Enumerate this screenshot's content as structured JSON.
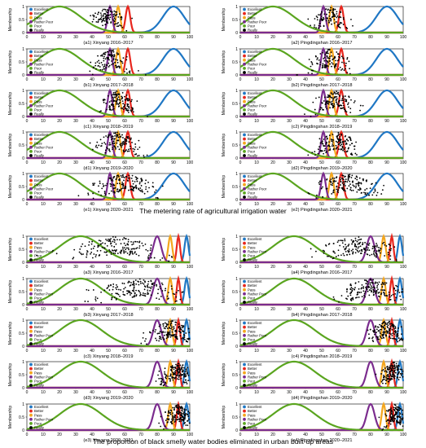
{
  "legend_items": [
    {
      "label": "Excellent",
      "color": "#1f77c4"
    },
    {
      "label": "Better",
      "color": "#e8261d"
    },
    {
      "label": "Pass",
      "color": "#f4a61c"
    },
    {
      "label": "Rather Poor",
      "color": "#7b2c8e"
    },
    {
      "label": "Poor",
      "color": "#5aa51f"
    },
    {
      "label": "Really",
      "color": "#000000"
    }
  ],
  "y_axis_label": "Membership",
  "x_ticks": [
    "0",
    "10",
    "20",
    "30",
    "40",
    "50",
    "60",
    "70",
    "80",
    "90",
    "100"
  ],
  "y_ticks": [
    "0",
    "0.5",
    "1"
  ],
  "sections": [
    {
      "title": "The metering rate of agricultural irrigation water",
      "bands": {
        "poor": {
          "mu": 20,
          "sigma": 13
        },
        "rather_poor": {
          "mu": 51,
          "sigma": 1.4
        },
        "pass": {
          "mu": 56,
          "sigma": 1.3
        },
        "better": {
          "mu": 62,
          "sigma": 1.4
        },
        "excellent": {
          "mu": 90,
          "sigma": 6.5
        }
      }
    },
    {
      "title": "The proportion of black smelly water bodies eliminated in urban built-up areas",
      "bands": {
        "poor": {
          "mu": 33,
          "sigma": 13
        },
        "rather_poor": {
          "mu": 80,
          "sigma": 2.4
        },
        "pass": {
          "mu": 88,
          "sigma": 1.2
        },
        "better": {
          "mu": 93,
          "sigma": 1.0
        },
        "excellent": {
          "mu": 98,
          "sigma": 1.2
        }
      }
    }
  ],
  "panels": [
    {
      "section": 0,
      "caption": "(a1) Xinyang 2016–2017",
      "cloud": {
        "center": 50,
        "spread": 5.5,
        "n": 110
      }
    },
    {
      "section": 0,
      "caption": "(a2) Pingdingshan 2016–2017",
      "cloud": {
        "center": 55,
        "spread": 5.5,
        "n": 110
      }
    },
    {
      "section": 0,
      "caption": "(b1) Xinyang 2017–2018",
      "cloud": {
        "center": 52,
        "spread": 5.5,
        "n": 110
      }
    },
    {
      "section": 0,
      "caption": "(b2) Pingdingshan 2017–2018",
      "cloud": {
        "center": 55,
        "spread": 6,
        "n": 110
      }
    },
    {
      "section": 0,
      "caption": "(c1) Xinyang 2018–2019",
      "cloud": {
        "center": 56,
        "spread": 5.5,
        "n": 120
      }
    },
    {
      "section": 0,
      "caption": "(c2) Pingdingshan 2018–2019",
      "cloud": {
        "center": 58,
        "spread": 6.5,
        "n": 130
      }
    },
    {
      "section": 0,
      "caption": "(d1) Xinyang 2019–2020",
      "cloud": {
        "center": 55,
        "spread": 7,
        "n": 130
      }
    },
    {
      "section": 0,
      "caption": "(d2) Pingdingshan 2019–2020",
      "cloud": {
        "center": 59,
        "spread": 7,
        "n": 140
      }
    },
    {
      "section": 0,
      "caption": "(e1) Xinyang 2020–2021",
      "cloud": {
        "center": 60,
        "spread": 10,
        "n": 160
      }
    },
    {
      "section": 0,
      "caption": "(e2) Pingdingshan 2020–2021",
      "cloud": {
        "center": 66,
        "spread": 10,
        "n": 160
      }
    },
    {
      "section": 1,
      "caption": "(a3) Xinyang 2016–2017",
      "cloud": {
        "center": 55,
        "spread": 13,
        "n": 170
      }
    },
    {
      "section": 1,
      "caption": "(a4) Pingdingshan 2016–2017",
      "cloud": {
        "center": 72,
        "spread": 12,
        "n": 170
      }
    },
    {
      "section": 1,
      "caption": "(b3) Xinyang 2017–2018",
      "cloud": {
        "center": 70,
        "spread": 13,
        "n": 170
      }
    },
    {
      "section": 1,
      "caption": "(b4) Pingdingshan 2017–2018",
      "cloud": {
        "center": 80,
        "spread": 10,
        "n": 170
      }
    },
    {
      "section": 1,
      "caption": "(c3) Xinyang 2018–2019",
      "cloud": {
        "center": 88,
        "spread": 7,
        "n": 160
      }
    },
    {
      "section": 1,
      "caption": "(c4) Pingdingshan 2018–2019",
      "cloud": {
        "center": 90,
        "spread": 6,
        "n": 150
      }
    },
    {
      "section": 1,
      "caption": "(d3) Xinyang 2019–2020",
      "cloud": {
        "center": 92,
        "spread": 5,
        "n": 150
      }
    },
    {
      "section": 1,
      "caption": "(d4) Pingdingshan 2019–2020",
      "cloud": {
        "center": 94,
        "spread": 4,
        "n": 140
      }
    },
    {
      "section": 1,
      "caption": "(e3) Xinyang 2020–2021",
      "cloud": {
        "center": 93,
        "spread": 4.5,
        "n": 150
      }
    },
    {
      "section": 1,
      "caption": "(e4) Pingdingshan 2020–2021",
      "cloud": {
        "center": 95,
        "spread": 3.5,
        "n": 140
      }
    }
  ],
  "chart_data": {
    "type": "line",
    "description_units": "x = indicator value (0–100), y = membership degree (0–1)",
    "xlim": [
      0,
      100
    ],
    "ylim": [
      0,
      1
    ],
    "ylabel": "Membership",
    "series_names": [
      "Excellent",
      "Better",
      "Pass",
      "Rather Poor",
      "Poor",
      "Really"
    ]
  }
}
